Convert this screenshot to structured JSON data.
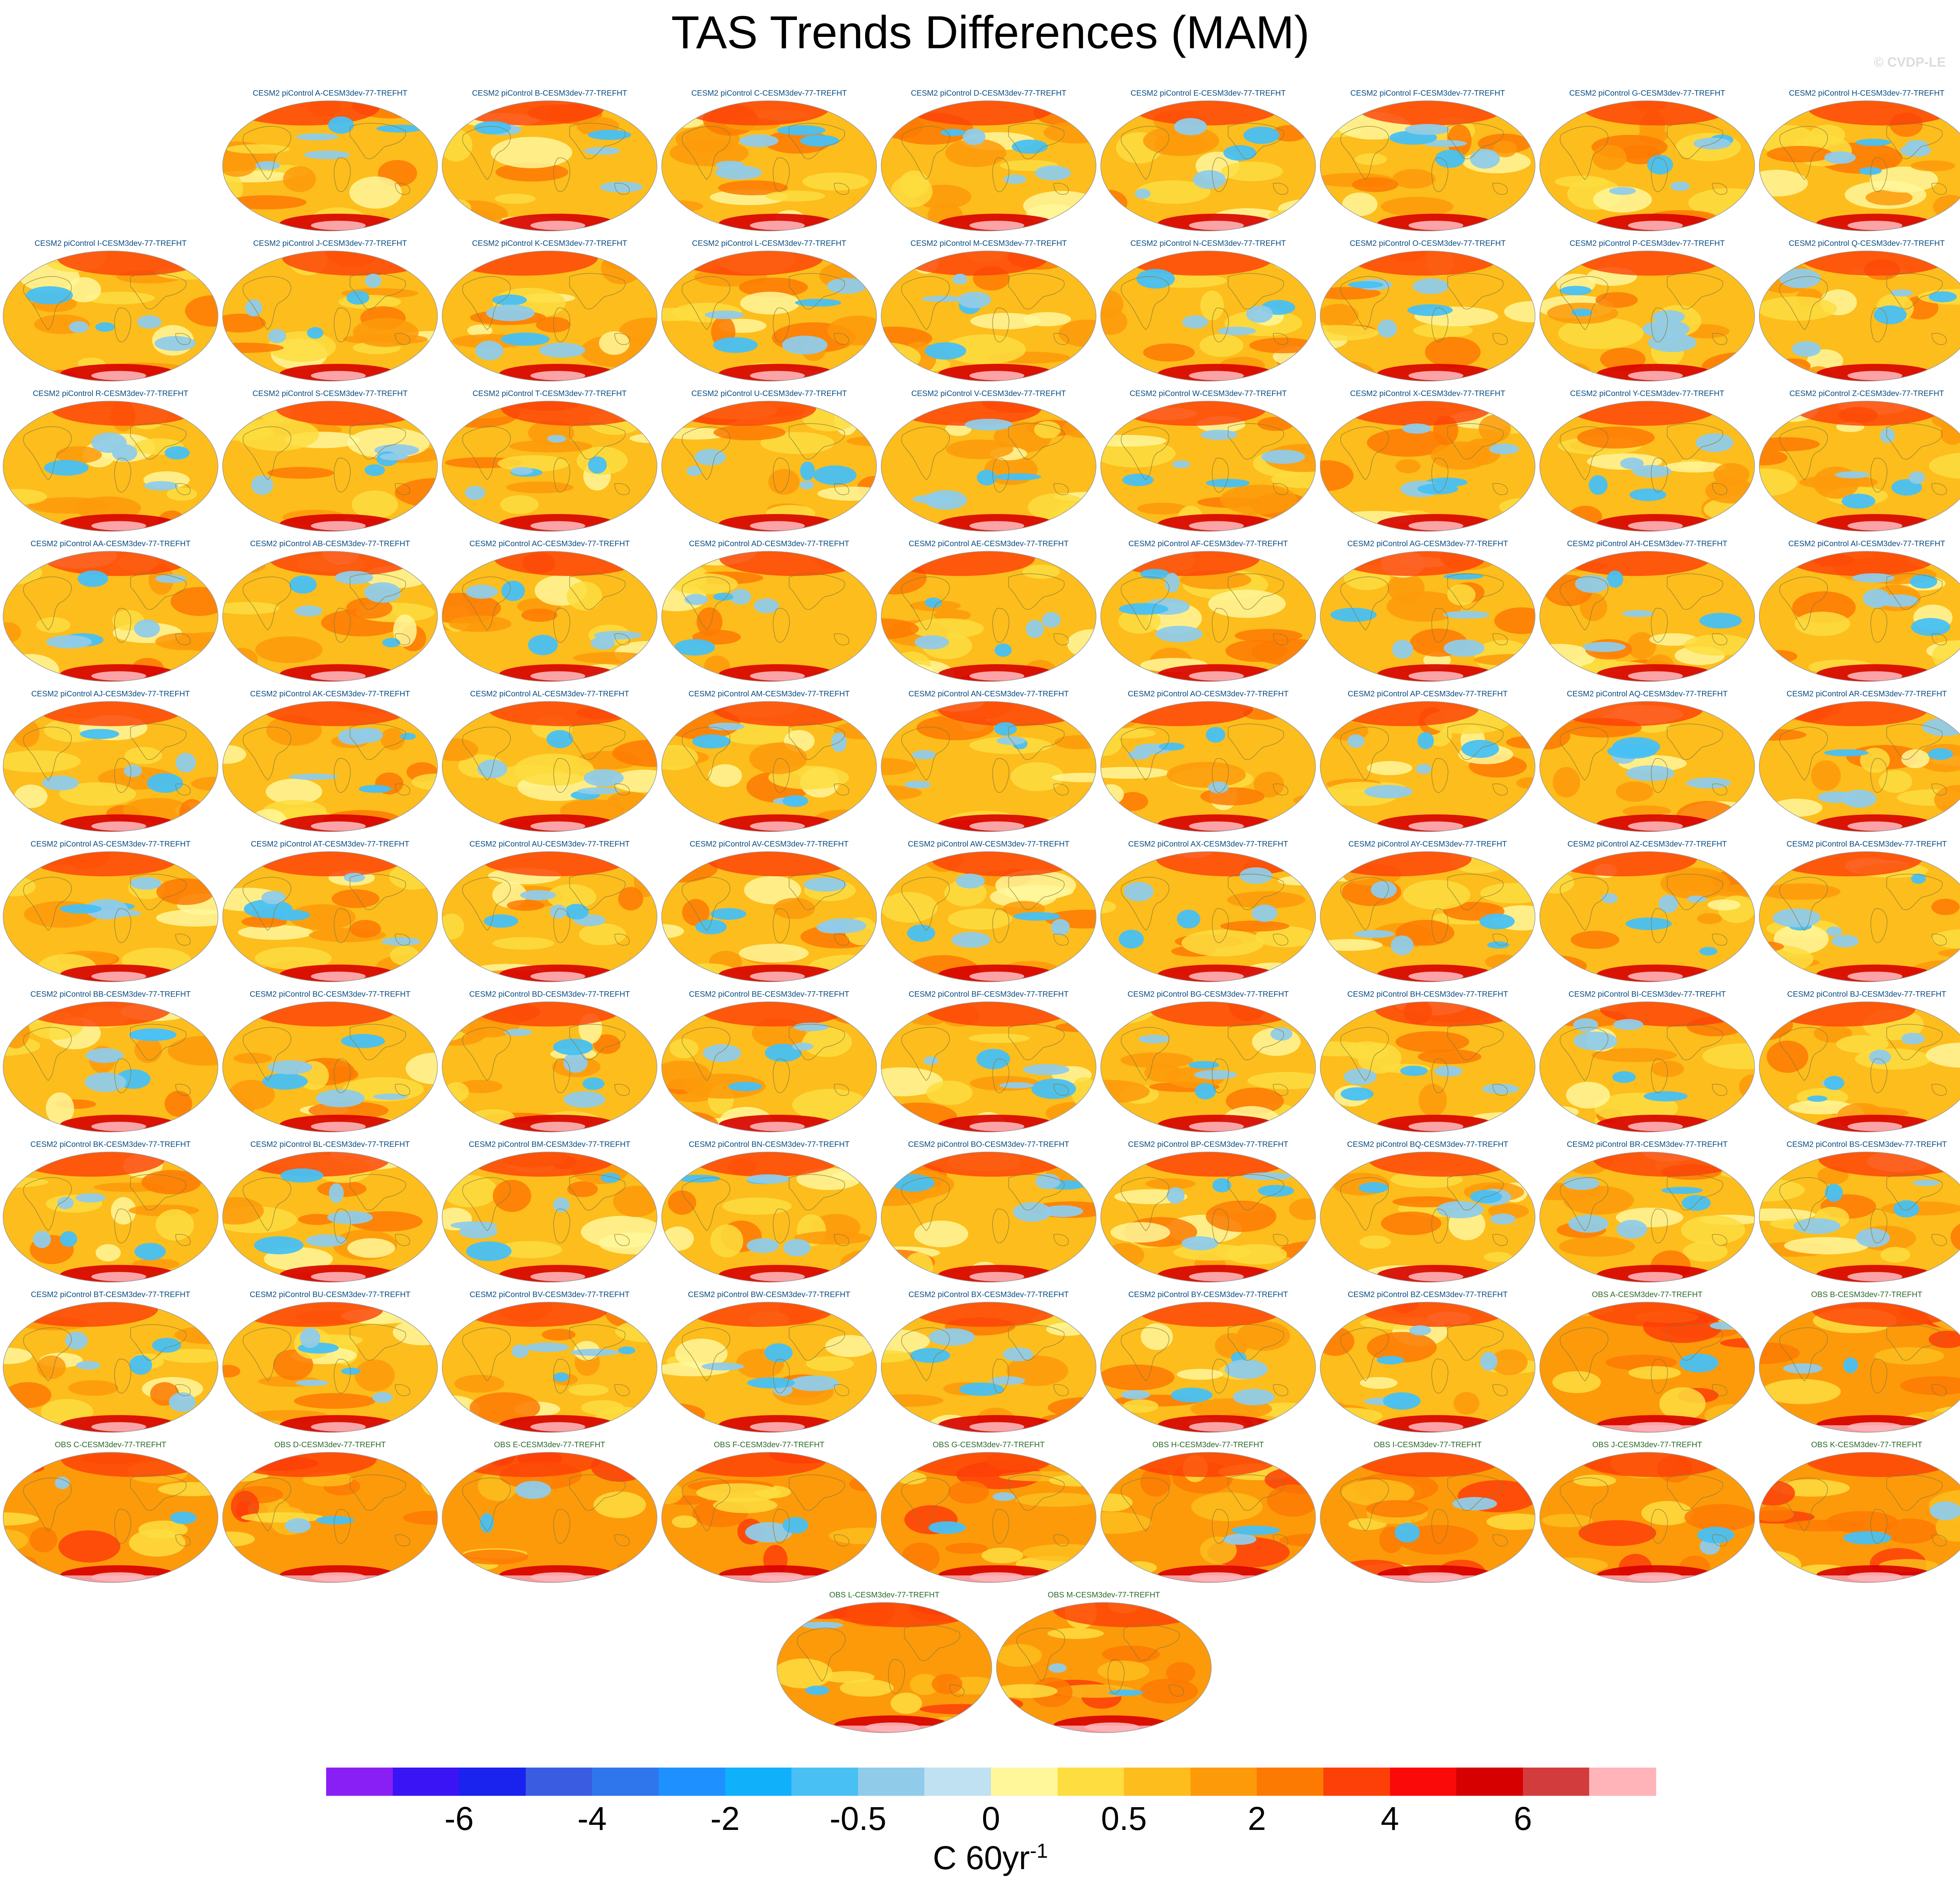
{
  "title": "TAS Trends Differences (MAM)",
  "copyright": "© CVDP-LE",
  "panels": [
    {
      "label": "CESM2 piControl A-CESM3dev-77-TREFHT",
      "type": "cesm"
    },
    {
      "label": "CESM2 piControl B-CESM3dev-77-TREFHT",
      "type": "cesm"
    },
    {
      "label": "CESM2 piControl C-CESM3dev-77-TREFHT",
      "type": "cesm"
    },
    {
      "label": "CESM2 piControl D-CESM3dev-77-TREFHT",
      "type": "cesm"
    },
    {
      "label": "CESM2 piControl E-CESM3dev-77-TREFHT",
      "type": "cesm"
    },
    {
      "label": "CESM2 piControl F-CESM3dev-77-TREFHT",
      "type": "cesm"
    },
    {
      "label": "CESM2 piControl G-CESM3dev-77-TREFHT",
      "type": "cesm"
    },
    {
      "label": "CESM2 piControl H-CESM3dev-77-TREFHT",
      "type": "cesm"
    },
    {
      "label": "CESM2 piControl I-CESM3dev-77-TREFHT",
      "type": "cesm"
    },
    {
      "label": "CESM2 piControl J-CESM3dev-77-TREFHT",
      "type": "cesm"
    },
    {
      "label": "CESM2 piControl K-CESM3dev-77-TREFHT",
      "type": "cesm"
    },
    {
      "label": "CESM2 piControl L-CESM3dev-77-TREFHT",
      "type": "cesm"
    },
    {
      "label": "CESM2 piControl M-CESM3dev-77-TREFHT",
      "type": "cesm"
    },
    {
      "label": "CESM2 piControl N-CESM3dev-77-TREFHT",
      "type": "cesm"
    },
    {
      "label": "CESM2 piControl O-CESM3dev-77-TREFHT",
      "type": "cesm"
    },
    {
      "label": "CESM2 piControl P-CESM3dev-77-TREFHT",
      "type": "cesm"
    },
    {
      "label": "CESM2 piControl Q-CESM3dev-77-TREFHT",
      "type": "cesm"
    },
    {
      "label": "CESM2 piControl R-CESM3dev-77-TREFHT",
      "type": "cesm"
    },
    {
      "label": "CESM2 piControl S-CESM3dev-77-TREFHT",
      "type": "cesm"
    },
    {
      "label": "CESM2 piControl T-CESM3dev-77-TREFHT",
      "type": "cesm"
    },
    {
      "label": "CESM2 piControl U-CESM3dev-77-TREFHT",
      "type": "cesm"
    },
    {
      "label": "CESM2 piControl V-CESM3dev-77-TREFHT",
      "type": "cesm"
    },
    {
      "label": "CESM2 piControl W-CESM3dev-77-TREFHT",
      "type": "cesm"
    },
    {
      "label": "CESM2 piControl X-CESM3dev-77-TREFHT",
      "type": "cesm"
    },
    {
      "label": "CESM2 piControl Y-CESM3dev-77-TREFHT",
      "type": "cesm"
    },
    {
      "label": "CESM2 piControl Z-CESM3dev-77-TREFHT",
      "type": "cesm"
    },
    {
      "label": "CESM2 piControl AA-CESM3dev-77-TREFHT",
      "type": "cesm"
    },
    {
      "label": "CESM2 piControl AB-CESM3dev-77-TREFHT",
      "type": "cesm"
    },
    {
      "label": "CESM2 piControl AC-CESM3dev-77-TREFHT",
      "type": "cesm"
    },
    {
      "label": "CESM2 piControl AD-CESM3dev-77-TREFHT",
      "type": "cesm"
    },
    {
      "label": "CESM2 piControl AE-CESM3dev-77-TREFHT",
      "type": "cesm"
    },
    {
      "label": "CESM2 piControl AF-CESM3dev-77-TREFHT",
      "type": "cesm"
    },
    {
      "label": "CESM2 piControl AG-CESM3dev-77-TREFHT",
      "type": "cesm"
    },
    {
      "label": "CESM2 piControl AH-CESM3dev-77-TREFHT",
      "type": "cesm"
    },
    {
      "label": "CESM2 piControl AI-CESM3dev-77-TREFHT",
      "type": "cesm"
    },
    {
      "label": "CESM2 piControl AJ-CESM3dev-77-TREFHT",
      "type": "cesm"
    },
    {
      "label": "CESM2 piControl AK-CESM3dev-77-TREFHT",
      "type": "cesm"
    },
    {
      "label": "CESM2 piControl AL-CESM3dev-77-TREFHT",
      "type": "cesm"
    },
    {
      "label": "CESM2 piControl AM-CESM3dev-77-TREFHT",
      "type": "cesm"
    },
    {
      "label": "CESM2 piControl AN-CESM3dev-77-TREFHT",
      "type": "cesm"
    },
    {
      "label": "CESM2 piControl AO-CESM3dev-77-TREFHT",
      "type": "cesm"
    },
    {
      "label": "CESM2 piControl AP-CESM3dev-77-TREFHT",
      "type": "cesm"
    },
    {
      "label": "CESM2 piControl AQ-CESM3dev-77-TREFHT",
      "type": "cesm"
    },
    {
      "label": "CESM2 piControl AR-CESM3dev-77-TREFHT",
      "type": "cesm"
    },
    {
      "label": "CESM2 piControl AS-CESM3dev-77-TREFHT",
      "type": "cesm"
    },
    {
      "label": "CESM2 piControl AT-CESM3dev-77-TREFHT",
      "type": "cesm"
    },
    {
      "label": "CESM2 piControl AU-CESM3dev-77-TREFHT",
      "type": "cesm"
    },
    {
      "label": "CESM2 piControl AV-CESM3dev-77-TREFHT",
      "type": "cesm"
    },
    {
      "label": "CESM2 piControl AW-CESM3dev-77-TREFHT",
      "type": "cesm"
    },
    {
      "label": "CESM2 piControl AX-CESM3dev-77-TREFHT",
      "type": "cesm"
    },
    {
      "label": "CESM2 piControl AY-CESM3dev-77-TREFHT",
      "type": "cesm"
    },
    {
      "label": "CESM2 piControl AZ-CESM3dev-77-TREFHT",
      "type": "cesm"
    },
    {
      "label": "CESM2 piControl BA-CESM3dev-77-TREFHT",
      "type": "cesm"
    },
    {
      "label": "CESM2 piControl BB-CESM3dev-77-TREFHT",
      "type": "cesm"
    },
    {
      "label": "CESM2 piControl BC-CESM3dev-77-TREFHT",
      "type": "cesm"
    },
    {
      "label": "CESM2 piControl BD-CESM3dev-77-TREFHT",
      "type": "cesm"
    },
    {
      "label": "CESM2 piControl BE-CESM3dev-77-TREFHT",
      "type": "cesm"
    },
    {
      "label": "CESM2 piControl BF-CESM3dev-77-TREFHT",
      "type": "cesm"
    },
    {
      "label": "CESM2 piControl BG-CESM3dev-77-TREFHT",
      "type": "cesm"
    },
    {
      "label": "CESM2 piControl BH-CESM3dev-77-TREFHT",
      "type": "cesm"
    },
    {
      "label": "CESM2 piControl BI-CESM3dev-77-TREFHT",
      "type": "cesm"
    },
    {
      "label": "CESM2 piControl BJ-CESM3dev-77-TREFHT",
      "type": "cesm"
    },
    {
      "label": "CESM2 piControl BK-CESM3dev-77-TREFHT",
      "type": "cesm"
    },
    {
      "label": "CESM2 piControl BL-CESM3dev-77-TREFHT",
      "type": "cesm"
    },
    {
      "label": "CESM2 piControl BM-CESM3dev-77-TREFHT",
      "type": "cesm"
    },
    {
      "label": "CESM2 piControl BN-CESM3dev-77-TREFHT",
      "type": "cesm"
    },
    {
      "label": "CESM2 piControl BO-CESM3dev-77-TREFHT",
      "type": "cesm"
    },
    {
      "label": "CESM2 piControl BP-CESM3dev-77-TREFHT",
      "type": "cesm"
    },
    {
      "label": "CESM2 piControl BQ-CESM3dev-77-TREFHT",
      "type": "cesm"
    },
    {
      "label": "CESM2 piControl BR-CESM3dev-77-TREFHT",
      "type": "cesm"
    },
    {
      "label": "CESM2 piControl BS-CESM3dev-77-TREFHT",
      "type": "cesm"
    },
    {
      "label": "CESM2 piControl BT-CESM3dev-77-TREFHT",
      "type": "cesm"
    },
    {
      "label": "CESM2 piControl BU-CESM3dev-77-TREFHT",
      "type": "cesm"
    },
    {
      "label": "CESM2 piControl BV-CESM3dev-77-TREFHT",
      "type": "cesm"
    },
    {
      "label": "CESM2 piControl BW-CESM3dev-77-TREFHT",
      "type": "cesm"
    },
    {
      "label": "CESM2 piControl BX-CESM3dev-77-TREFHT",
      "type": "cesm"
    },
    {
      "label": "CESM2 piControl BY-CESM3dev-77-TREFHT",
      "type": "cesm"
    },
    {
      "label": "CESM2 piControl BZ-CESM3dev-77-TREFHT",
      "type": "cesm"
    },
    {
      "label": "OBS A-CESM3dev-77-TREFHT",
      "type": "obs"
    },
    {
      "label": "OBS B-CESM3dev-77-TREFHT",
      "type": "obs"
    },
    {
      "label": "OBS C-CESM3dev-77-TREFHT",
      "type": "obs"
    },
    {
      "label": "OBS D-CESM3dev-77-TREFHT",
      "type": "obs"
    },
    {
      "label": "OBS E-CESM3dev-77-TREFHT",
      "type": "obs"
    },
    {
      "label": "OBS F-CESM3dev-77-TREFHT",
      "type": "obs"
    },
    {
      "label": "OBS G-CESM3dev-77-TREFHT",
      "type": "obs"
    },
    {
      "label": "OBS H-CESM3dev-77-TREFHT",
      "type": "obs"
    },
    {
      "label": "OBS I-CESM3dev-77-TREFHT",
      "type": "obs"
    },
    {
      "label": "OBS J-CESM3dev-77-TREFHT",
      "type": "obs"
    },
    {
      "label": "OBS K-CESM3dev-77-TREFHT",
      "type": "obs"
    },
    {
      "label": "OBS L-CESM3dev-77-TREFHT",
      "type": "obs"
    },
    {
      "label": "OBS M-CESM3dev-77-TREFHT",
      "type": "obs"
    }
  ],
  "colorbar": {
    "colors": [
      "#8a1ff5",
      "#3a14f5",
      "#1a22ee",
      "#3a5ce0",
      "#2f76ec",
      "#1e90ff",
      "#10b0fb",
      "#48c0f4",
      "#90cbe9",
      "#bfe1f2",
      "#fff79a",
      "#fddd3f",
      "#fdbd1c",
      "#fd9a0a",
      "#fd7a02",
      "#fd3f08",
      "#fb0a0a",
      "#d70000",
      "#d33c3c",
      "#feb4b8"
    ],
    "tick_labels": [
      {
        "label": "-6",
        "boundary": 2
      },
      {
        "label": "-4",
        "boundary": 4
      },
      {
        "label": "-2",
        "boundary": 6
      },
      {
        "label": "-0.5",
        "boundary": 8
      },
      {
        "label": "0",
        "boundary": 10
      },
      {
        "label": "0.5",
        "boundary": 12
      },
      {
        "label": "2",
        "boundary": 14
      },
      {
        "label": "4",
        "boundary": 16
      },
      {
        "label": "6",
        "boundary": 18
      }
    ],
    "units": "C 60yr",
    "units_exponent": "-1"
  }
}
